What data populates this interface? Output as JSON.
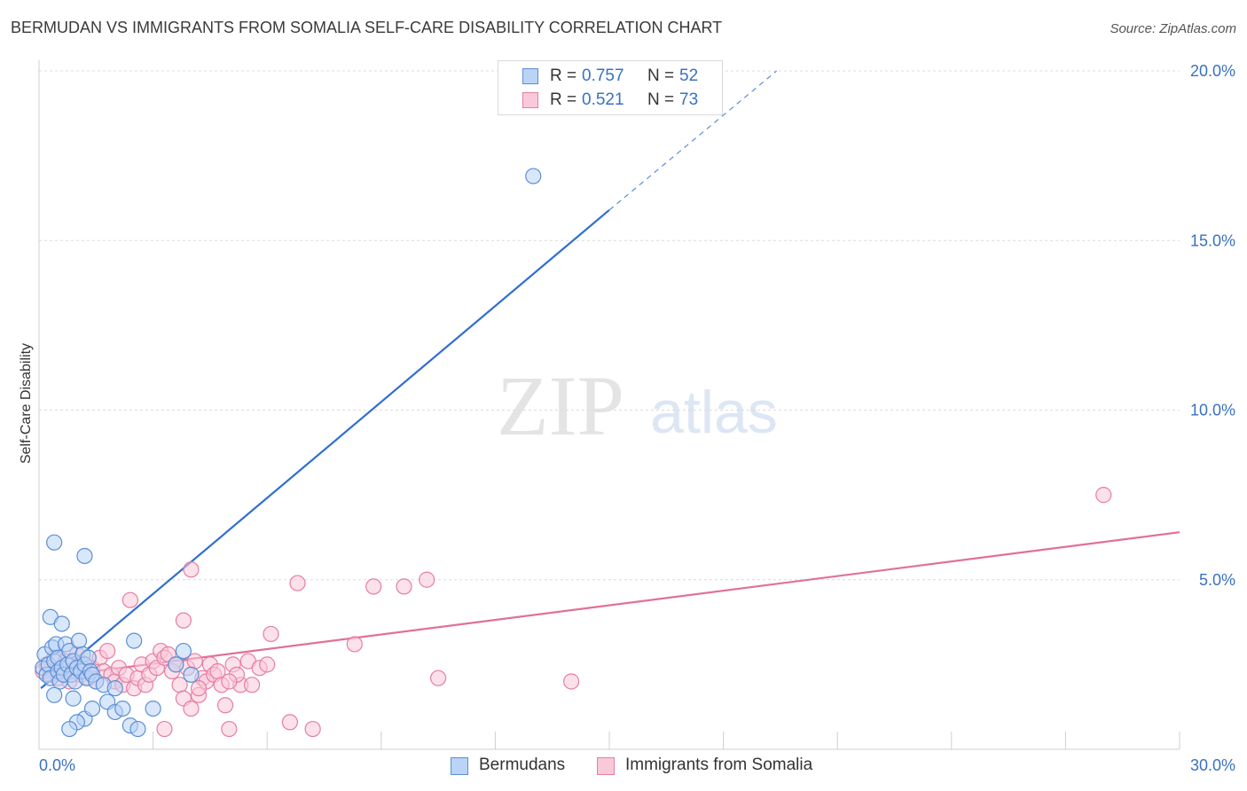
{
  "title": "BERMUDAN VS IMMIGRANTS FROM SOMALIA SELF-CARE DISABILITY CORRELATION CHART",
  "source": "Source: ZipAtlas.com",
  "watermark": {
    "zip": "ZIP",
    "atlas": "atlas"
  },
  "colors": {
    "blue_fill": "#b9d4f5",
    "blue_stroke": "#5b8fd6",
    "blue_line": "#2f6fd0",
    "pink_fill": "#f9c9d8",
    "pink_stroke": "#e57ea0",
    "pink_line": "#e0709a",
    "tick_label": "#3a70c2",
    "grid": "#dcdcdc"
  },
  "legend": {
    "r_label": "R =",
    "n_label": "N =",
    "series": [
      {
        "r": "0.757",
        "n": "52"
      },
      {
        "r": "0.521",
        "n": "73"
      }
    ]
  },
  "bottom_legend": {
    "bermudans": "Bermudans",
    "somalia": "Immigrants from Somalia"
  },
  "chart_data": {
    "type": "scatter",
    "title": "BERMUDAN VS IMMIGRANTS FROM SOMALIA SELF-CARE DISABILITY CORRELATION CHART",
    "xlabel": "",
    "ylabel": "Self-Care Disability",
    "xlim": [
      0,
      30
    ],
    "ylim": [
      0,
      20.5
    ],
    "x_tick_labels": [
      "0.0%",
      "30.0%"
    ],
    "y_ticks": [
      {
        "value": 5,
        "label": "5.0%"
      },
      {
        "value": 10,
        "label": "10.0%"
      },
      {
        "value": 15,
        "label": "15.0%"
      },
      {
        "value": 20,
        "label": "20.0%"
      }
    ],
    "series": [
      {
        "name": "Bermudans",
        "r": 0.757,
        "n": 52,
        "trend": {
          "x0": 0.05,
          "y0": 1.8,
          "x1": 15.0,
          "y1": 15.9,
          "dashed_to_x": 19.4,
          "dashed_to_y": 20.0
        },
        "points": [
          [
            0.1,
            2.4
          ],
          [
            0.15,
            2.8
          ],
          [
            0.2,
            2.2
          ],
          [
            0.25,
            2.5
          ],
          [
            0.3,
            3.9
          ],
          [
            0.3,
            2.1
          ],
          [
            0.35,
            3.0
          ],
          [
            0.4,
            2.6
          ],
          [
            0.45,
            3.1
          ],
          [
            0.5,
            2.3
          ],
          [
            0.5,
            2.7
          ],
          [
            0.55,
            2.0
          ],
          [
            0.6,
            3.7
          ],
          [
            0.6,
            2.4
          ],
          [
            0.65,
            2.2
          ],
          [
            0.7,
            3.1
          ],
          [
            0.75,
            2.5
          ],
          [
            0.8,
            2.9
          ],
          [
            0.85,
            2.2
          ],
          [
            0.9,
            2.6
          ],
          [
            0.95,
            2.0
          ],
          [
            1.0,
            2.4
          ],
          [
            1.05,
            3.2
          ],
          [
            1.1,
            2.3
          ],
          [
            1.15,
            2.8
          ],
          [
            1.2,
            2.5
          ],
          [
            1.25,
            2.1
          ],
          [
            1.3,
            2.7
          ],
          [
            1.35,
            2.3
          ],
          [
            1.4,
            2.2
          ],
          [
            1.5,
            2.0
          ],
          [
            1.7,
            1.9
          ],
          [
            1.8,
            1.4
          ],
          [
            2.0,
            1.1
          ],
          [
            2.2,
            1.2
          ],
          [
            2.4,
            0.7
          ],
          [
            2.6,
            0.6
          ],
          [
            1.2,
            0.9
          ],
          [
            1.0,
            0.8
          ],
          [
            0.8,
            0.6
          ],
          [
            0.4,
            1.6
          ],
          [
            0.9,
            1.5
          ],
          [
            1.4,
            1.2
          ],
          [
            2.0,
            1.8
          ],
          [
            2.5,
            3.2
          ],
          [
            0.4,
            6.1
          ],
          [
            1.2,
            5.7
          ],
          [
            3.0,
            1.2
          ],
          [
            3.8,
            2.9
          ],
          [
            4.0,
            2.2
          ],
          [
            3.6,
            2.5
          ],
          [
            13.0,
            16.9
          ]
        ]
      },
      {
        "name": "Immigrants from Somalia",
        "r": 0.521,
        "n": 73,
        "trend": {
          "x0": 0.05,
          "y0": 2.1,
          "x1": 30.0,
          "y1": 6.4
        },
        "points": [
          [
            0.1,
            2.3
          ],
          [
            0.2,
            2.5
          ],
          [
            0.3,
            2.2
          ],
          [
            0.4,
            2.7
          ],
          [
            0.5,
            2.1
          ],
          [
            0.6,
            2.4
          ],
          [
            0.7,
            2.6
          ],
          [
            0.8,
            2.0
          ],
          [
            0.9,
            2.3
          ],
          [
            1.0,
            2.8
          ],
          [
            1.1,
            2.2
          ],
          [
            1.2,
            2.5
          ],
          [
            1.3,
            2.1
          ],
          [
            1.4,
            2.4
          ],
          [
            1.5,
            2.0
          ],
          [
            1.6,
            2.7
          ],
          [
            1.7,
            2.3
          ],
          [
            1.8,
            2.9
          ],
          [
            1.9,
            2.2
          ],
          [
            2.0,
            2.0
          ],
          [
            2.1,
            2.4
          ],
          [
            2.2,
            1.9
          ],
          [
            2.3,
            2.2
          ],
          [
            2.5,
            1.8
          ],
          [
            2.6,
            2.1
          ],
          [
            2.7,
            2.5
          ],
          [
            2.8,
            1.9
          ],
          [
            2.9,
            2.2
          ],
          [
            3.0,
            2.6
          ],
          [
            3.1,
            2.4
          ],
          [
            3.2,
            2.9
          ],
          [
            3.3,
            2.7
          ],
          [
            3.4,
            2.8
          ],
          [
            3.5,
            2.3
          ],
          [
            3.6,
            2.5
          ],
          [
            3.7,
            1.9
          ],
          [
            3.8,
            1.5
          ],
          [
            3.9,
            2.4
          ],
          [
            4.0,
            1.2
          ],
          [
            4.1,
            2.6
          ],
          [
            4.2,
            1.6
          ],
          [
            4.3,
            2.1
          ],
          [
            4.4,
            2.0
          ],
          [
            4.5,
            2.5
          ],
          [
            4.6,
            2.2
          ],
          [
            4.7,
            2.3
          ],
          [
            4.9,
            1.3
          ],
          [
            5.1,
            2.5
          ],
          [
            5.3,
            1.9
          ],
          [
            5.6,
            1.9
          ],
          [
            5.2,
            2.2
          ],
          [
            4.8,
            1.9
          ],
          [
            2.4,
            4.4
          ],
          [
            3.3,
            0.6
          ],
          [
            3.8,
            3.8
          ],
          [
            4.0,
            5.3
          ],
          [
            4.2,
            1.8
          ],
          [
            5.0,
            2.0
          ],
          [
            5.5,
            2.6
          ],
          [
            5.8,
            2.4
          ],
          [
            6.0,
            2.5
          ],
          [
            6.1,
            3.4
          ],
          [
            5.0,
            0.6
          ],
          [
            6.6,
            0.8
          ],
          [
            6.8,
            4.9
          ],
          [
            7.2,
            0.6
          ],
          [
            8.3,
            3.1
          ],
          [
            8.8,
            4.8
          ],
          [
            9.6,
            4.8
          ],
          [
            10.2,
            5.0
          ],
          [
            10.5,
            2.1
          ],
          [
            14.0,
            2.0
          ],
          [
            28.0,
            7.5
          ]
        ]
      }
    ]
  }
}
